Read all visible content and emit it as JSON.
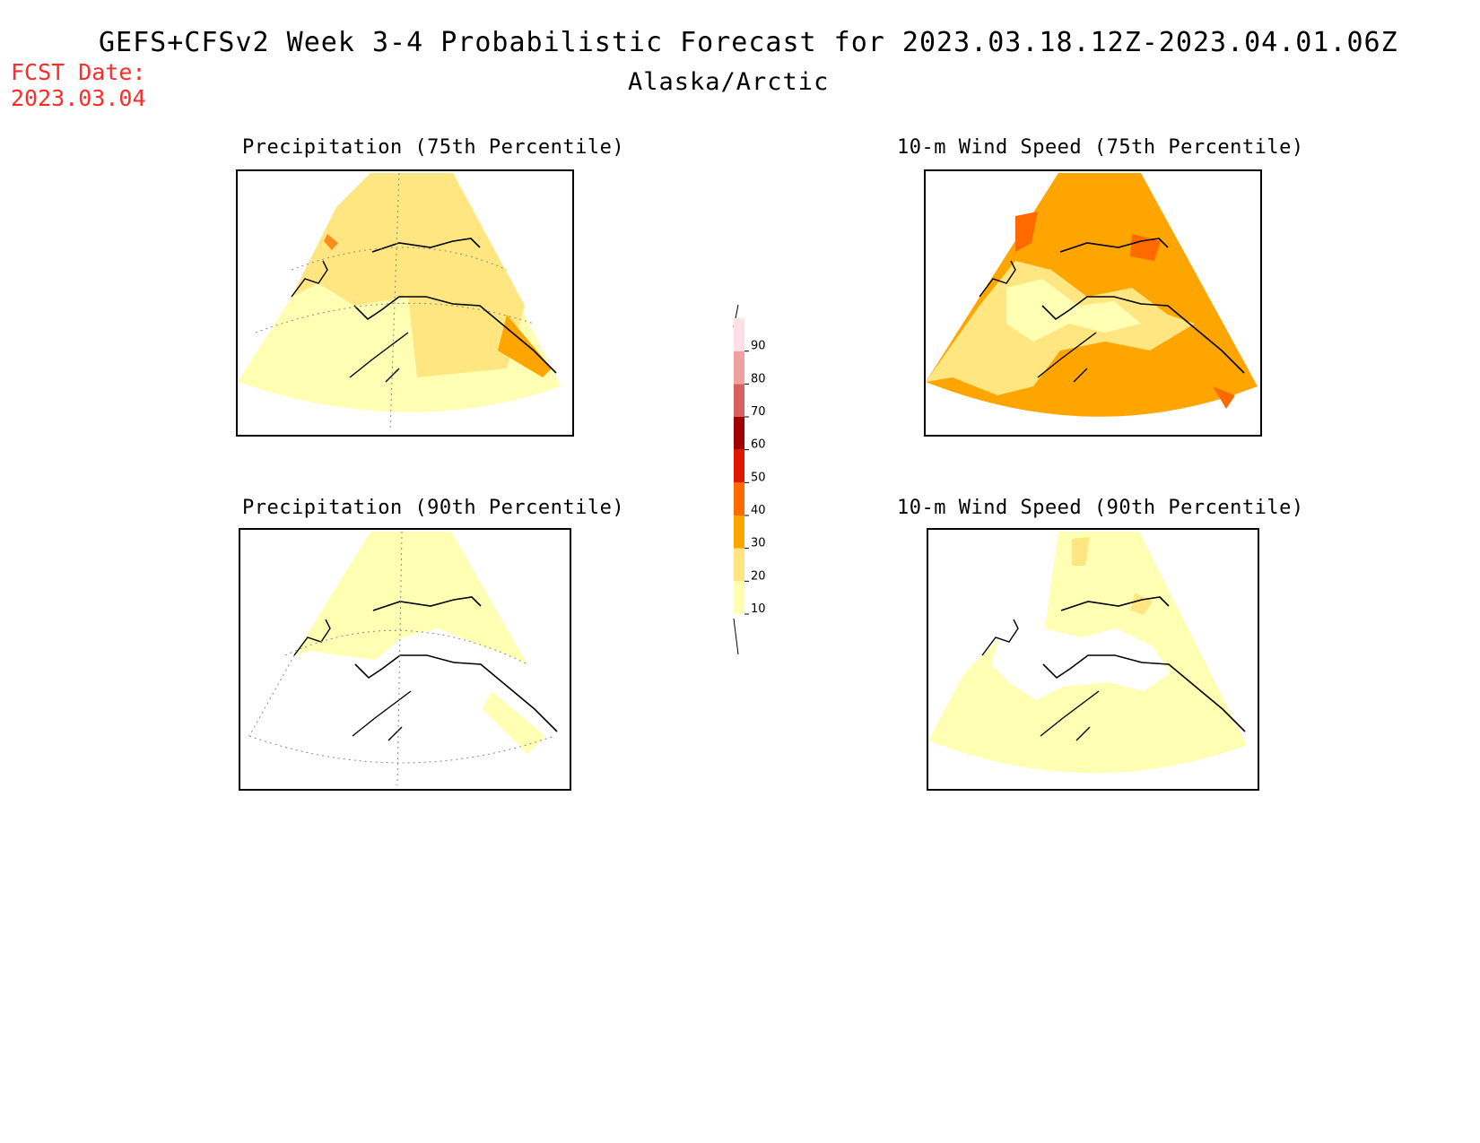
{
  "header": {
    "title": "GEFS+CFSv2 Week 3-4 Probabilistic Forecast for 2023.03.18.12Z-2023.04.01.06Z",
    "region": "Alaska/Arctic",
    "fcst_label": "FCST Date:",
    "fcst_date": "2023.03.04"
  },
  "panels": [
    {
      "id": "precip75",
      "title": "Precipitation (75th Percentile)",
      "dominant_category": "20-30"
    },
    {
      "id": "wind75",
      "title": "10-m Wind Speed (75th Percentile)",
      "dominant_category": "30-40"
    },
    {
      "id": "precip90",
      "title": "Precipitation (90th Percentile)",
      "dominant_category": "10-20"
    },
    {
      "id": "wind90",
      "title": "10-m Wind Speed (90th Percentile)",
      "dominant_category": "10-20"
    }
  ],
  "colorbar": {
    "ticks": [
      "10",
      "20",
      "30",
      "40",
      "50",
      "60",
      "70",
      "80",
      "90"
    ],
    "colors": [
      "#ffffb4",
      "#ffe680",
      "#ffa500",
      "#ff6a00",
      "#e01800",
      "#a00000",
      "#d86060",
      "#f0a0a0",
      "#ffe0e8"
    ]
  }
}
